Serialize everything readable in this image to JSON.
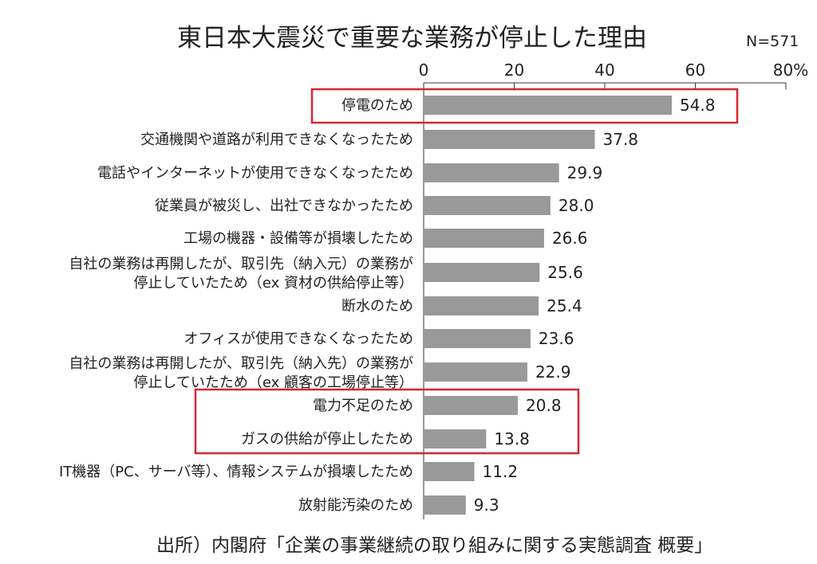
{
  "chart_data": {
    "type": "bar",
    "orientation": "horizontal",
    "title": "東日本大震災で重要な業務が停止した理由",
    "sample_size": "N=571",
    "source": "出所）内閣府「企業の事業継続の取り組みに関する実態調査 概要」",
    "xlim": [
      0,
      80
    ],
    "ticks": [
      "0",
      "20",
      "40",
      "60",
      "80%"
    ],
    "grid": false,
    "bar_color": "#999999",
    "highlight_color": "#d7262f",
    "categories": [
      [
        "停電のため"
      ],
      [
        "交通機関や道路が利用できなくなったため"
      ],
      [
        "電話やインターネットが使用できなくなったため"
      ],
      [
        "従業員が被災し、出社できなかったため"
      ],
      [
        "工場の機器・設備等が損壊したため"
      ],
      [
        "自社の業務は再開したが、取引先（納入元）の業務が",
        "停止していたため（ex 資材の供給停止等）"
      ],
      [
        "断水のため"
      ],
      [
        "オフィスが使用できなくなったため"
      ],
      [
        "自社の業務は再開したが、取引先（納入先）の業務が",
        "停止していたため（ex 顧客の工場停止等）"
      ],
      [
        "電力不足のため"
      ],
      [
        "ガスの供給が停止したため"
      ],
      [
        "IT機器（PC、サーバ等）、情報システムが損壊したため"
      ],
      [
        "放射能汚染のため"
      ]
    ],
    "values": [
      54.8,
      37.8,
      29.9,
      28.0,
      26.6,
      25.6,
      25.4,
      23.6,
      22.9,
      20.8,
      13.8,
      11.2,
      9.3
    ],
    "value_labels": [
      "54.8",
      "37.8",
      "29.9",
      "28.0",
      "26.6",
      "25.6",
      "25.4",
      "23.6",
      "22.9",
      "20.8",
      "13.8",
      "11.2",
      "9.3"
    ],
    "highlight_groups": [
      [
        0
      ],
      [
        9,
        10
      ]
    ]
  }
}
